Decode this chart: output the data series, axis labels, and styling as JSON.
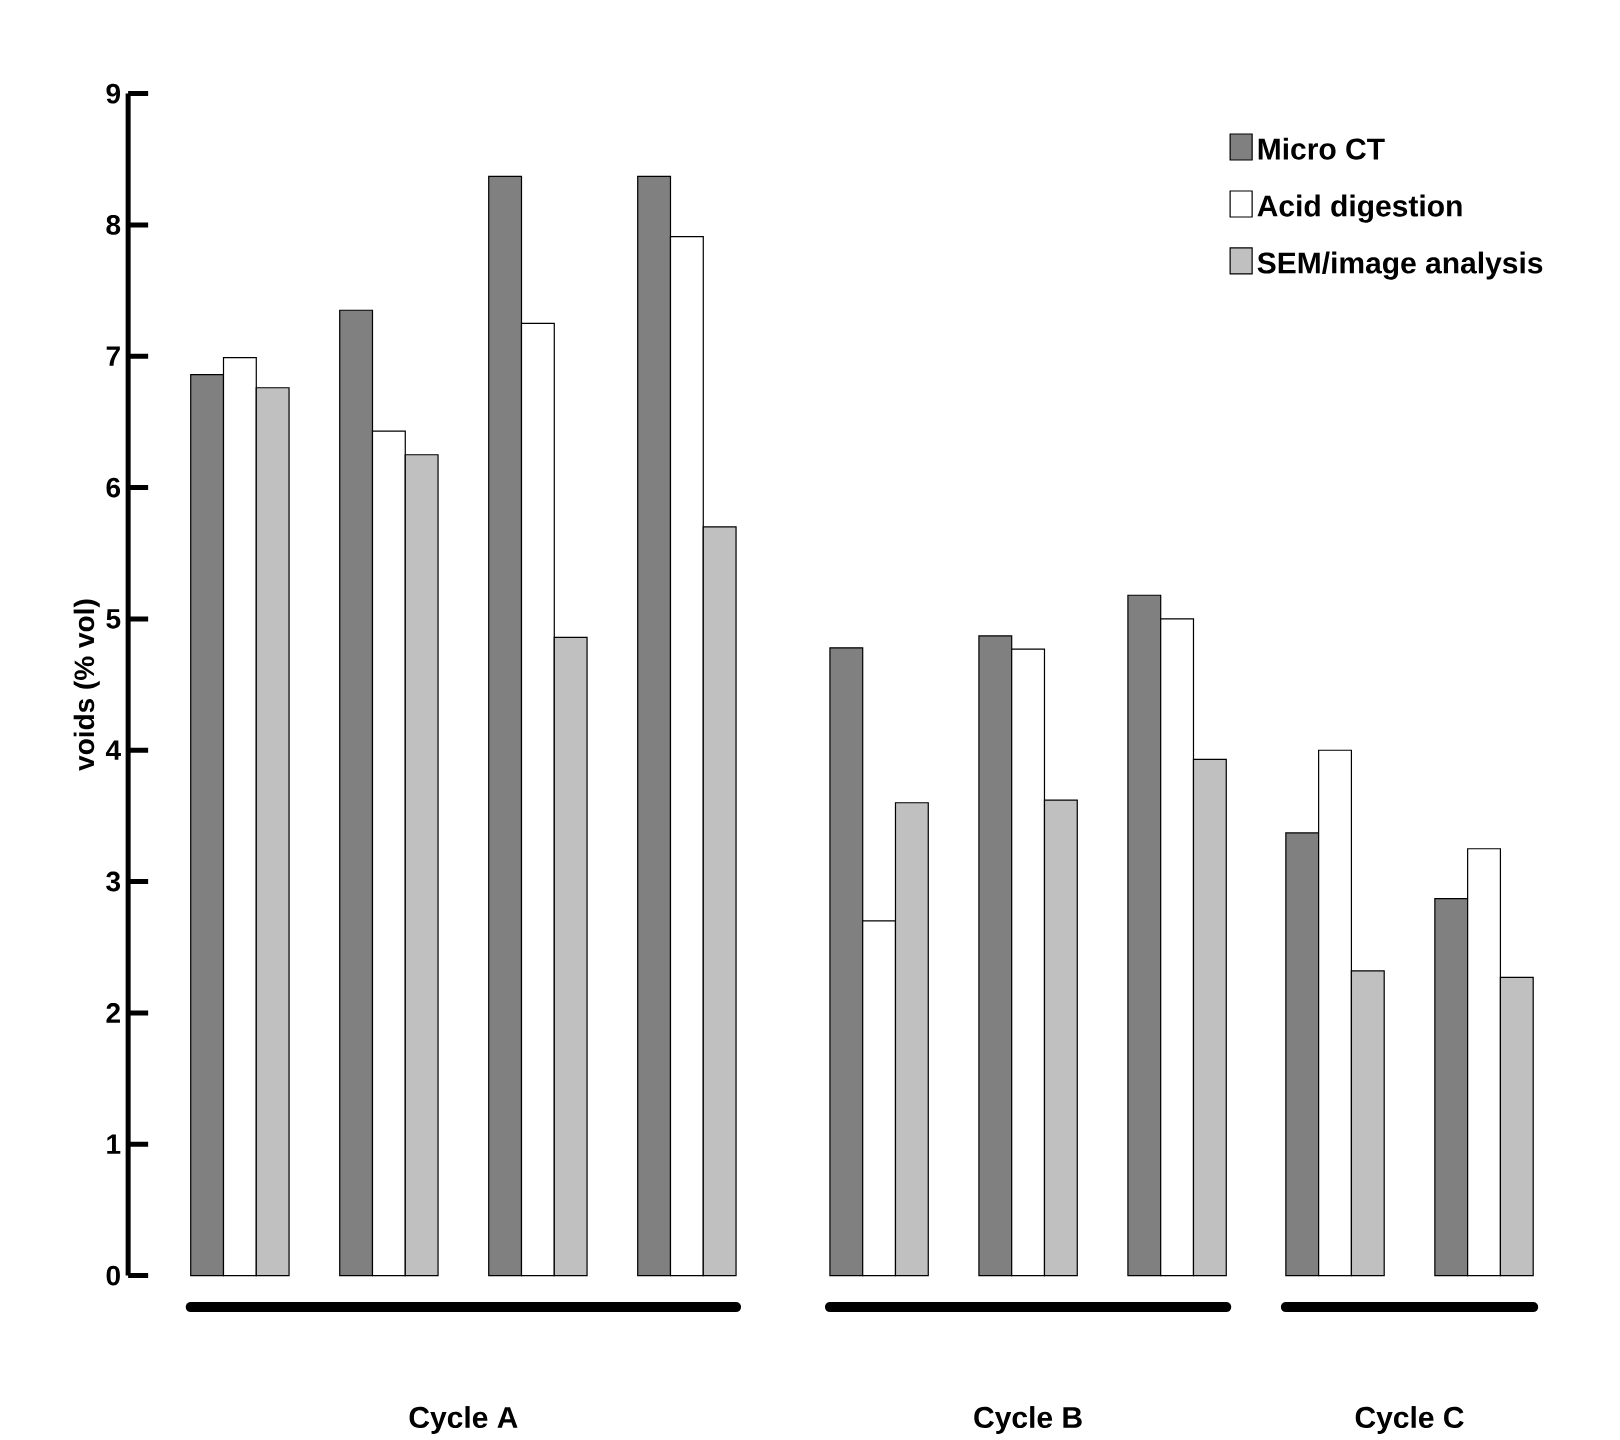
{
  "chart_data": {
    "type": "bar",
    "ylabel": "voids (% vol)",
    "categories": [
      null,
      null,
      null,
      null,
      null,
      null,
      null,
      null,
      null
    ],
    "series": [
      {
        "name": "Micro CT",
        "color": "#808080",
        "values": [
          6.86,
          7.35,
          8.37,
          8.37,
          4.78,
          4.87,
          5.18,
          3.37,
          2.87
        ]
      },
      {
        "name": "Acid digestion",
        "color": "#ffffff",
        "values": [
          6.99,
          6.43,
          7.25,
          7.91,
          2.7,
          4.77,
          5.0,
          4.0,
          3.25
        ]
      },
      {
        "name": "SEM/image analysis",
        "color": "#c0c0c0",
        "values": [
          6.76,
          6.25,
          4.86,
          5.7,
          3.6,
          3.62,
          3.93,
          2.32,
          2.27
        ]
      }
    ],
    "annotations": [
      "Cycle A",
      "Cycle B",
      "Cycle C"
    ],
    "ylim": [
      0,
      9
    ],
    "yticks": [
      0,
      1,
      2,
      3,
      4,
      5,
      6,
      7,
      8,
      9
    ],
    "legend": "top right",
    "grid": false
  }
}
